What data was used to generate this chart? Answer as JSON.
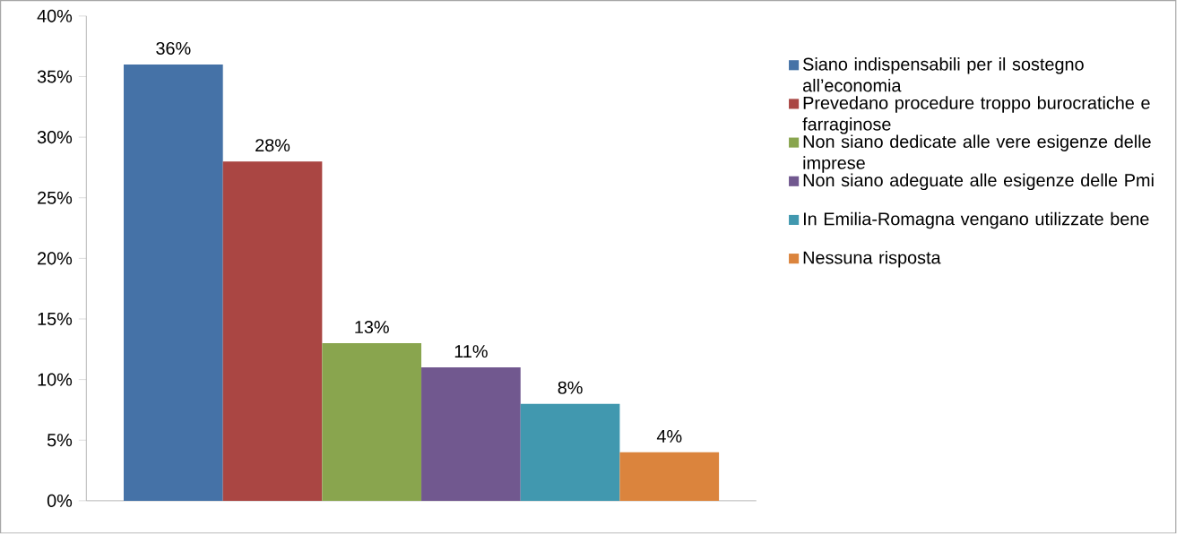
{
  "chart_data": {
    "type": "bar",
    "categories": [
      null
    ],
    "series": [
      {
        "name": "Siano indispensabili per il sostegno all’economia",
        "color": "#4572a7",
        "values": [
          36
        ],
        "value_labels": [
          "36%"
        ]
      },
      {
        "name": "Prevedano procedure troppo burocratiche e farraginose",
        "color": "#aa4643",
        "values": [
          28
        ],
        "value_labels": [
          "28%"
        ]
      },
      {
        "name": "Non siano dedicate alle vere esigenze delle imprese",
        "color": "#89a54e",
        "values": [
          13
        ],
        "value_labels": [
          "13%"
        ]
      },
      {
        "name": "Non siano adeguate alle esigenze delle Pmi",
        "color": "#71588f",
        "values": [
          11
        ],
        "value_labels": [
          "11%"
        ]
      },
      {
        "name": "In Emilia-Romagna  vengano utilizzate bene",
        "color": "#4198af",
        "values": [
          8
        ],
        "value_labels": [
          "8%"
        ]
      },
      {
        "name": "Nessuna risposta",
        "color": "#db843d",
        "values": [
          4
        ],
        "value_labels": [
          "4%"
        ]
      }
    ],
    "ylim": [
      0,
      40
    ],
    "yticks": [
      {
        "value": 0,
        "label": "0%"
      },
      {
        "value": 5,
        "label": "5%"
      },
      {
        "value": 10,
        "label": "10%"
      },
      {
        "value": 15,
        "label": "15%"
      },
      {
        "value": 20,
        "label": "20%"
      },
      {
        "value": 25,
        "label": "25%"
      },
      {
        "value": 30,
        "label": "30%"
      },
      {
        "value": 35,
        "label": "35%"
      },
      {
        "value": 40,
        "label": "40%"
      }
    ],
    "legend": "right",
    "grid": false
  }
}
